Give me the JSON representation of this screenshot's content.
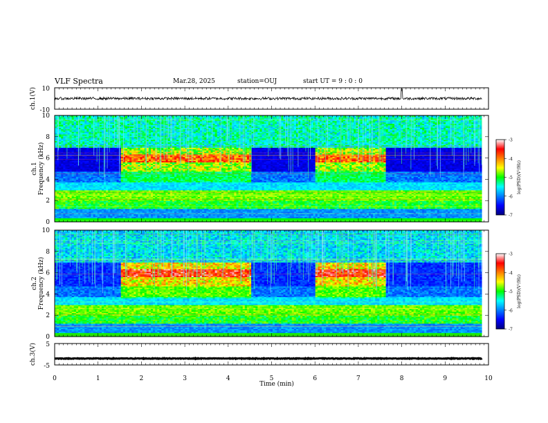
{
  "header": {
    "title": "VLF Spectra",
    "date": "Mar.28, 2025",
    "station": "station=OUJ",
    "start": "start  UT =   9 : 0  : 0"
  },
  "chart_data": [
    {
      "type": "line",
      "panel": "ch1-waveform",
      "ylabel": "ch.1(V)",
      "ylim": [
        -10,
        10
      ],
      "yticks": [
        "10",
        "-10"
      ],
      "description_values": {
        "baseline": 0,
        "spike_time_min": 8.0
      }
    },
    {
      "type": "heatmap",
      "panel": "ch1-spectrogram",
      "ylabel": "ch.1\nFrequency (kHz)",
      "ylabel_line1": "ch.1",
      "ylabel_line2": "Frequency (kHz)",
      "ylim": [
        0,
        10
      ],
      "yticks": [
        "0",
        "2",
        "4",
        "6",
        "8",
        "10"
      ],
      "colorbar": {
        "label": "log(PSD)(V²/Hz)",
        "range": [
          -7,
          -3
        ],
        "ticks": [
          "-3",
          "-4",
          "-5",
          "-6",
          "-7"
        ]
      },
      "emission_bursts": [
        {
          "start": 1.5,
          "end": 4.5
        },
        {
          "start": 6.0,
          "end": 7.6
        }
      ]
    },
    {
      "type": "heatmap",
      "panel": "ch2-spectrogram",
      "ylabel_line1": "ch.2",
      "ylabel_line2": "Frequency (kHz)",
      "ylim": [
        0,
        10
      ],
      "yticks": [
        "0",
        "2",
        "4",
        "6",
        "8",
        "10"
      ],
      "colorbar": {
        "label": "log(PSD)(V²/Hz)",
        "range": [
          -7,
          -3
        ],
        "ticks": [
          "-3",
          "-4",
          "-5",
          "-6",
          "-7"
        ]
      },
      "emission_bursts": [
        {
          "start": 1.5,
          "end": 4.5
        },
        {
          "start": 6.0,
          "end": 7.6
        }
      ]
    },
    {
      "type": "line",
      "panel": "ch3-waveform",
      "ylabel": "ch.3(V)",
      "ylim": [
        -5,
        5
      ],
      "yticks": [
        "5",
        "-5"
      ],
      "description_values": {
        "baseline": -2
      }
    }
  ],
  "xaxis": {
    "label": "Time  (min)",
    "range": [
      0,
      10
    ],
    "ticks": [
      "0",
      "1",
      "2",
      "3",
      "4",
      "5",
      "6",
      "7",
      "8",
      "9",
      "10"
    ],
    "data_end": 9.85
  },
  "colorbar_label": "log(PSD)(V²/Hz)"
}
